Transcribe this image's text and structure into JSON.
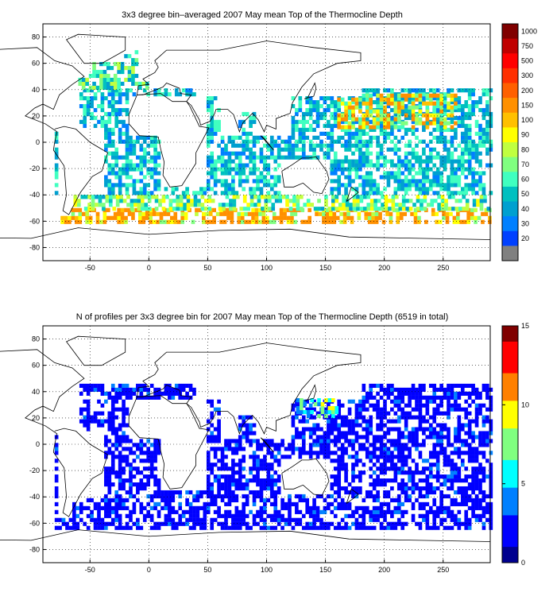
{
  "chart_data": [
    {
      "type": "heatmap",
      "title": "3x3 degree bin–averaged 2007 May mean Top of the Thermocline Depth",
      "xlabel": "",
      "ylabel": "",
      "xlim": [
        -90,
        290
      ],
      "ylim": [
        -90,
        90
      ],
      "xticks": [
        "-50",
        "0",
        "50",
        "100",
        "150",
        "200",
        "250"
      ],
      "yticks": [
        "80",
        "60",
        "40",
        "20",
        "0",
        "-20",
        "-40",
        "-60",
        "-80"
      ],
      "grid": "dotted",
      "colorbar": {
        "orientation": "vertical",
        "labels": [
          "1000",
          "750",
          "500",
          "300",
          "200",
          "150",
          "100",
          "90",
          "80",
          "70",
          "60",
          "50",
          "40",
          "30",
          "20"
        ],
        "colors": [
          "#800000",
          "#c00000",
          "#ff0000",
          "#ff3000",
          "#ff6000",
          "#ff9000",
          "#ffc000",
          "#ffff00",
          "#c0ff40",
          "#80ff80",
          "#40ffc0",
          "#00c0c0",
          "#00a0d0",
          "#0080ff",
          "#0040ff",
          "#808080"
        ],
        "min_label": "20",
        "max_label": "1000"
      },
      "regions": [
        {
          "lat": [
            -62,
            -52
          ],
          "lon": [
            -75,
            290
          ],
          "value": 100
        },
        {
          "lat": [
            -52,
            -40
          ],
          "lon": [
            -70,
            290
          ],
          "value": 60
        },
        {
          "lat": [
            -40,
            40
          ],
          "lon": [
            -80,
            290
          ],
          "value": 40
        },
        {
          "lat": [
            10,
            35
          ],
          "lon": [
            160,
            260
          ],
          "value": 90
        },
        {
          "lat": [
            40,
            70
          ],
          "lon": [
            -60,
            0
          ],
          "value": 50
        }
      ]
    },
    {
      "type": "heatmap",
      "title": "N of profiles per 3x3 degree bin for 2007 May mean Top of the Thermocline Depth  (6519 in total)",
      "xlabel": "",
      "ylabel": "",
      "xlim": [
        -90,
        290
      ],
      "ylim": [
        -90,
        90
      ],
      "xticks": [
        "-50",
        "0",
        "50",
        "100",
        "150",
        "200",
        "250"
      ],
      "yticks": [
        "80",
        "60",
        "40",
        "20",
        "0",
        "-20",
        "-40",
        "-60",
        "-80"
      ],
      "grid": "dotted",
      "colorbar": {
        "orientation": "vertical",
        "labels": [
          "15",
          "10",
          "5",
          "0"
        ],
        "range": [
          0,
          15
        ],
        "colors": [
          "#00008f",
          "#0000ff",
          "#0080ff",
          "#00ffff",
          "#80ff80",
          "#ffff00",
          "#ff8000",
          "#ff0000",
          "#800000"
        ]
      },
      "regions": [
        {
          "lat": [
            -65,
            45
          ],
          "lon": [
            -80,
            290
          ],
          "value": 2
        },
        {
          "lat": [
            20,
            45
          ],
          "lon": [
            125,
            160
          ],
          "value": 6
        }
      ]
    }
  ]
}
